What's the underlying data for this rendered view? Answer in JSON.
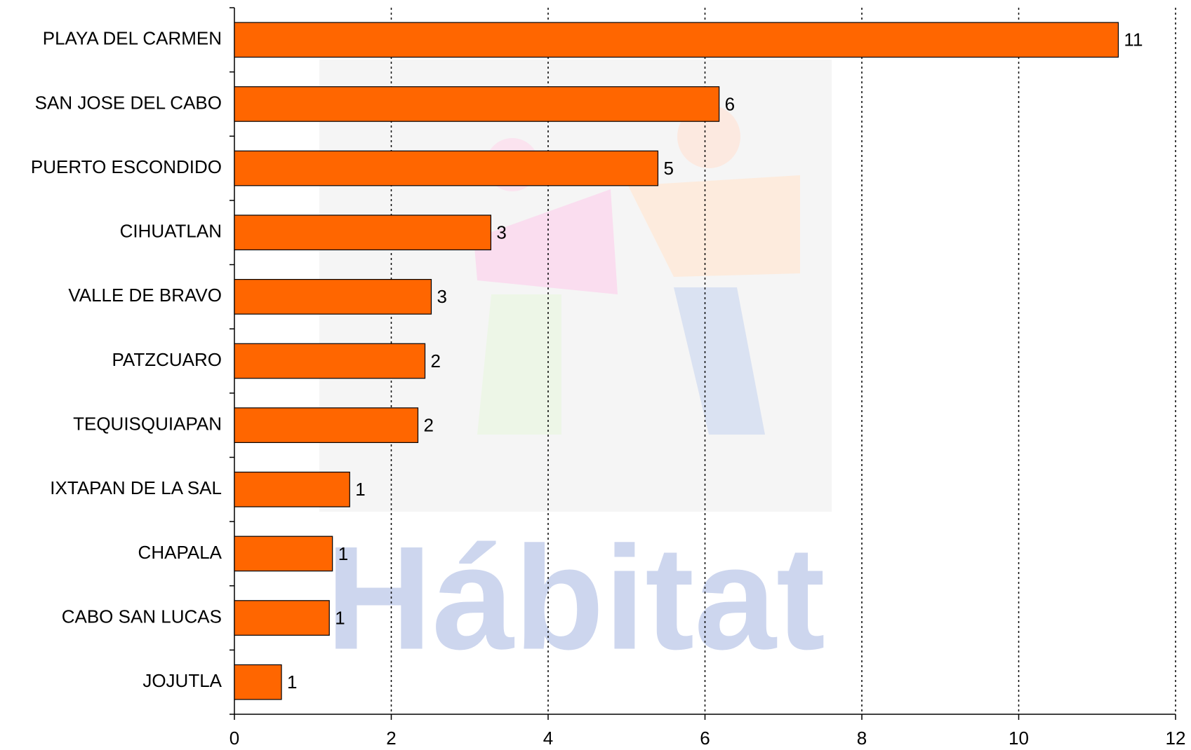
{
  "chart_data": {
    "type": "bar",
    "orientation": "horizontal",
    "watermark": "Hábitat",
    "categories": [
      "PLAYA DEL CARMEN",
      "SAN JOSE DEL CABO",
      "PUERTO ESCONDIDO",
      "CIHUATLAN",
      "VALLE DE BRAVO",
      "PATZCUARO",
      "TEQUISQUIAPAN",
      "IXTAPAN DE LA SAL",
      "CHAPALA",
      "CABO SAN LUCAS",
      "JOJUTLA"
    ],
    "values": [
      11.27,
      6.18,
      5.4,
      3.27,
      2.51,
      2.43,
      2.34,
      1.47,
      1.25,
      1.21,
      0.6
    ],
    "value_labels": [
      "11",
      "6",
      "5",
      "3",
      "3",
      "2",
      "2",
      "1",
      "1",
      "1",
      "1"
    ],
    "color": "#ff6600",
    "xlim": [
      0,
      12
    ],
    "xticks": [
      0,
      2,
      4,
      6,
      8,
      10,
      12
    ],
    "grid": true
  }
}
